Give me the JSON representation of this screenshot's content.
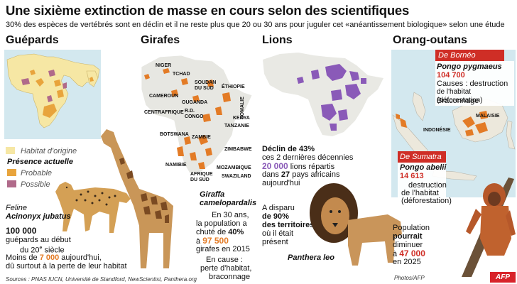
{
  "title": "Une sixième extinction de masse en cours selon des scientifiques",
  "subtitle": "30% des espèces de vertébrés sont en déclin et il ne reste plus que 20 ou 30 ans pour juguler cet «anéantissement biologique» selon une étude",
  "colors": {
    "orange": "#e37b26",
    "purple": "#8a5ab8",
    "red": "#cf2e26",
    "origin": "#f6e7a4",
    "possible": "#b06a8a",
    "probable": "#e8a43c",
    "sea": "#d3e8ef"
  },
  "cheetahs": {
    "header": "Guépards",
    "legend_origin": "Habitat d'origine",
    "legend_present": "Présence actuelle",
    "legend_probable": "Probable",
    "legend_possible": "Possible",
    "latin_1": "Feline",
    "latin_2": "Acinonyx jubatus",
    "count": "100 000",
    "count_text_1": "guépards au début",
    "count_text_2": "du 20",
    "count_text_sup": "e",
    "count_text_3": " siècle",
    "less_than": "Moins de ",
    "now_count": "7 000",
    "now_text": " aujourd'hui,",
    "cause": "dû surtout à la perte de leur habitat"
  },
  "giraffes": {
    "header": "Girafes",
    "map_labels": [
      "NIGER",
      "TCHAD",
      "SOUDAN DU SUD",
      "ÉTHIOPIE",
      "CAMEROUN",
      "OUGANDA",
      "SOMALIE",
      "CENTRAFRIQUE",
      "R.D. CONGO",
      "KENYA",
      "TANZANIE",
      "BOTSWANA",
      "ZAMBIE",
      "ZIMBABWE",
      "NAMIBIE",
      "MOZAMBIQUE",
      "AFRIQUE DU SUD",
      "SWAZILAND"
    ],
    "latin_1": "Giraffa",
    "latin_2": "camelopardalis",
    "pop_1": "En 30 ans,",
    "pop_2": "la population a",
    "pop_3a": "chuté de ",
    "pop_3b": "40%",
    "pop_4a": "à ",
    "pop_4b": "97 500",
    "pop_5": "girafes en 2015",
    "cause_1": "En cause :",
    "cause_2": "perte d'habitat,",
    "cause_3": "braconnage"
  },
  "lions": {
    "header": "Lions",
    "decline_1": "Déclin de 43%",
    "decline_2": "ces 2 dernières décennies",
    "decline_3a": "20 000",
    "decline_3b": " lions répartis",
    "decline_4a": "dans ",
    "decline_4b": "27",
    "decline_4c": " pays africains",
    "decline_5": "aujourd'hui",
    "gone_1": "A disparu",
    "gone_2": "de 90%",
    "gone_3": "des territoires",
    "gone_4": "où il était",
    "gone_5": "présent",
    "latin": "Panthera leo"
  },
  "orangutans": {
    "header": "Orang-outans",
    "borneo_label": "De Bornéo",
    "borneo_latin": "Pongo pygmaeus",
    "borneo_count": "104 700",
    "borneo_cause_1": "Causes : destruction",
    "borneo_cause_2": "de l'habitat (déforestation)",
    "borneo_cause_3": "Braconnage",
    "malaisie": "MALAISIE",
    "indonesie": "INDONÉSIE",
    "sumatra_label": "De Sumatra",
    "sumatra_latin": "Pongo abelii",
    "sumatra_count": "14 613",
    "sumatra_cause_1": "destruction",
    "sumatra_cause_2": "de l'habitat",
    "sumatra_cause_3": "(déforestation)",
    "future_1": "Population",
    "future_2": "pourrait",
    "future_3": "diminuer",
    "future_4a": "à ",
    "future_4b": "47 000",
    "future_5": "en 2025"
  },
  "credits": {
    "sources": "Sources : PNAS IUCN, Université de Standford, NewScientist, Panthera.org",
    "photos": "Photos/AFP",
    "logo": "AFP"
  }
}
